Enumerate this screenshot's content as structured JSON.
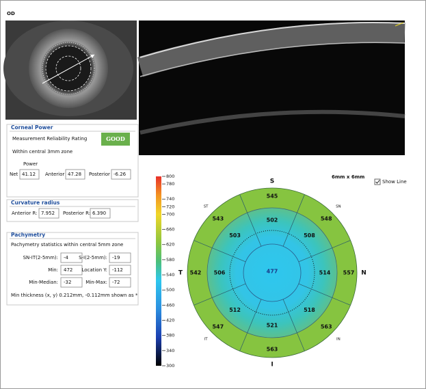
{
  "eye": "OD",
  "corneal_power": {
    "title": "Corneal Power",
    "rating_label": "Measurement Reliability Rating",
    "rating": "GOOD",
    "zone": "Within central 3mm zone",
    "power_header": "Power",
    "fields": [
      {
        "label": "Net",
        "value": "41.12"
      },
      {
        "label": "Anterior",
        "value": "47.28"
      },
      {
        "label": "Posterior",
        "value": "-6.26"
      }
    ]
  },
  "curvature_radius": {
    "title": "Curvature radius",
    "fields": [
      {
        "label": "Anterior R:",
        "value": "7.952"
      },
      {
        "label": "Posterior R:",
        "value": "6.390"
      }
    ]
  },
  "pachymetry": {
    "title": "Pachymetry",
    "subtitle": "Pachymetry statistics within central 5mm zone",
    "rows": [
      [
        {
          "label": "SN-IT(2-5mm):",
          "value": "-4"
        },
        {
          "label": "S-I(2-5mm):",
          "value": "-19"
        }
      ],
      [
        {
          "label": "Min:",
          "value": "472"
        },
        {
          "label": "Location Y:",
          "value": "-112"
        }
      ],
      [
        {
          "label": "Min-Median:",
          "value": "-32"
        },
        {
          "label": "Min-Max:",
          "value": "-72"
        }
      ]
    ],
    "note": "Min thickness (x, y) 0.212mm, -0.112mm shown as *"
  },
  "thickness_map": {
    "size_label": "6mm x 6mm",
    "show_line": "Show Line",
    "scale_ticks": [
      800,
      780,
      740,
      720,
      700,
      660,
      620,
      580,
      540,
      500,
      460,
      420,
      380,
      340,
      300
    ],
    "directions": [
      "S",
      "SN",
      "N",
      "IN",
      "I",
      "IT",
      "T",
      "ST"
    ],
    "center": 477,
    "inner_ring": [
      502,
      508,
      514,
      518,
      521,
      512,
      506,
      503
    ],
    "outer_ring": [
      545,
      548,
      557,
      563,
      563,
      547,
      542,
      543
    ]
  }
}
